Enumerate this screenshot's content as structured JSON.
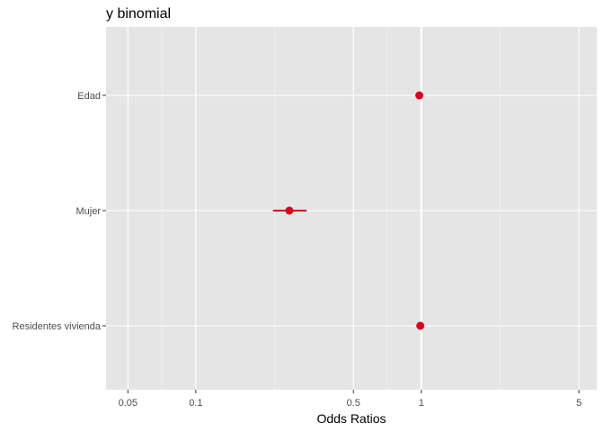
{
  "chart_data": {
    "type": "forest",
    "title": "y binomial",
    "xlabel": "Odds Ratios",
    "ylabel": "",
    "x_scale": "log",
    "xlim": [
      0.04,
      6
    ],
    "x_ticks": [
      0.05,
      0.1,
      0.5,
      1,
      5
    ],
    "x_tick_labels": [
      "0.05",
      "0.1",
      "0.5",
      "1",
      "5"
    ],
    "x_minor_ticks": [
      0.07071,
      0.2236,
      0.7071,
      2.2361
    ],
    "reference_line": 1,
    "grid": true,
    "categories": [
      "Edad",
      "Mujer",
      "Residentes vivienda"
    ],
    "series": [
      {
        "estimates": [
          0.98,
          0.26,
          0.99
        ],
        "ci_low": [
          0.97,
          0.22,
          0.97
        ],
        "ci_high": [
          0.99,
          0.31,
          1.01
        ]
      }
    ]
  },
  "colors": {
    "panel_background": "#e5e5e5",
    "grid_major": "#ffffff",
    "point": "#d7001d",
    "text": "#4d4d4d"
  }
}
